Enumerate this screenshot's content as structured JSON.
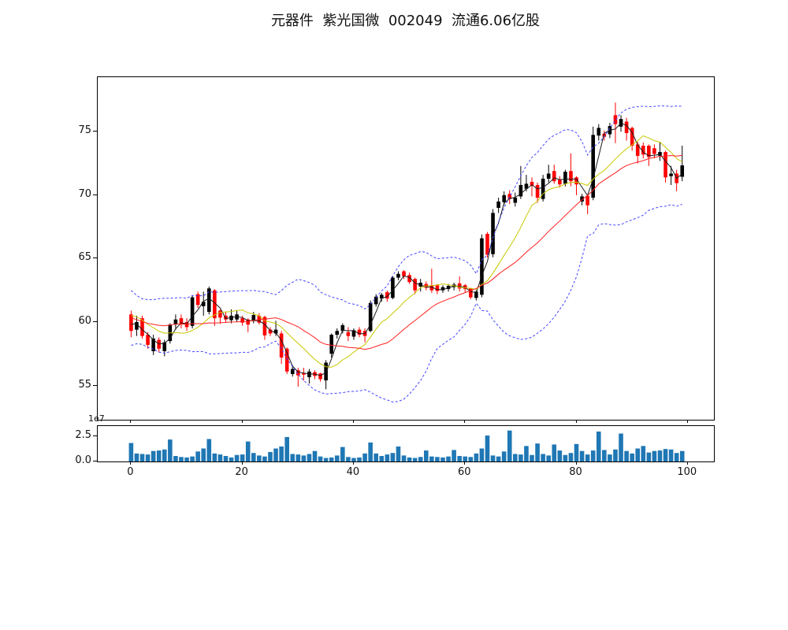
{
  "figure": {
    "title": "元器件  紫光国微  002049  流通6.06亿股",
    "background": "#ffffff"
  },
  "chart_data": [
    {
      "id": "price",
      "type": "candlestick",
      "title": "",
      "xlabel": "",
      "ylabel": "",
      "xlim": [
        -6,
        104.7
      ],
      "ylim": [
        52.3,
        79.3
      ],
      "y_ticks": [
        55,
        60,
        65,
        70,
        75
      ],
      "x_ticks": [
        0,
        20,
        40,
        60,
        80,
        100
      ],
      "grid": false,
      "color_up": "#000000",
      "color_down": "#ff0000",
      "ohlc": [
        [
          60.6,
          60.9,
          58.8,
          59.3
        ],
        [
          59.4,
          60.5,
          58.9,
          60.0
        ],
        [
          60.3,
          60.5,
          58.7,
          58.9
        ],
        [
          59.0,
          59.2,
          57.9,
          58.2
        ],
        [
          57.7,
          59.0,
          57.4,
          58.7
        ],
        [
          58.6,
          58.8,
          57.6,
          57.9
        ],
        [
          57.7,
          58.6,
          57.3,
          58.4
        ],
        [
          58.5,
          59.9,
          58.3,
          59.8
        ],
        [
          59.8,
          60.6,
          59.4,
          60.2
        ],
        [
          60.3,
          60.6,
          59.5,
          59.8
        ],
        [
          60.0,
          60.3,
          59.3,
          59.6
        ],
        [
          59.7,
          62.1,
          59.5,
          61.95
        ],
        [
          62.2,
          62.4,
          61.1,
          61.35
        ],
        [
          61.25,
          62.4,
          60.5,
          61.6
        ],
        [
          60.8,
          62.8,
          60.6,
          62.65
        ],
        [
          62.5,
          62.6,
          59.7,
          60.3
        ],
        [
          60.9,
          61.0,
          59.85,
          60.35
        ],
        [
          60.5,
          60.8,
          60.0,
          60.2
        ],
        [
          60.15,
          61.0,
          59.9,
          60.5
        ],
        [
          60.2,
          60.9,
          60.0,
          60.6
        ],
        [
          60.3,
          60.5,
          59.7,
          59.95
        ],
        [
          60.2,
          60.3,
          59.2,
          59.8
        ],
        [
          60.1,
          60.8,
          59.9,
          60.55
        ],
        [
          60.5,
          60.7,
          59.8,
          59.95
        ],
        [
          60.4,
          60.5,
          58.6,
          58.95
        ],
        [
          59.4,
          59.6,
          58.9,
          59.1
        ],
        [
          59.1,
          60.1,
          58.9,
          59.4
        ],
        [
          59.1,
          59.3,
          56.7,
          57.2
        ],
        [
          57.9,
          58.0,
          55.9,
          56.1
        ],
        [
          55.9,
          56.6,
          55.7,
          56.3
        ],
        [
          56.2,
          56.4,
          54.9,
          55.8
        ],
        [
          55.95,
          56.4,
          55.4,
          55.85
        ],
        [
          55.65,
          56.3,
          55.15,
          56.1
        ],
        [
          56.05,
          56.2,
          55.5,
          55.75
        ],
        [
          55.95,
          56.0,
          55.3,
          55.5
        ],
        [
          55.4,
          57.0,
          54.7,
          56.8
        ],
        [
          57.5,
          59.1,
          57.2,
          59.0
        ],
        [
          59.0,
          59.5,
          58.7,
          59.3
        ],
        [
          59.3,
          59.9,
          59.1,
          59.75
        ],
        [
          59.2,
          59.6,
          58.5,
          58.9
        ],
        [
          58.85,
          59.5,
          58.6,
          59.35
        ],
        [
          59.4,
          59.6,
          58.8,
          59.0
        ],
        [
          59.3,
          59.5,
          58.4,
          58.9
        ],
        [
          59.3,
          61.7,
          59.2,
          61.5
        ],
        [
          61.4,
          62.2,
          61.2,
          62.0
        ],
        [
          61.85,
          62.3,
          61.6,
          62.15
        ],
        [
          62.35,
          62.5,
          61.6,
          61.85
        ],
        [
          61.9,
          63.6,
          61.8,
          63.5
        ],
        [
          63.5,
          64.0,
          63.3,
          63.8
        ],
        [
          64.0,
          64.1,
          63.4,
          63.6
        ],
        [
          63.7,
          63.9,
          63.0,
          63.15
        ],
        [
          63.4,
          63.5,
          62.2,
          62.5
        ],
        [
          62.8,
          63.4,
          62.4,
          63.1
        ],
        [
          63.0,
          63.2,
          62.5,
          62.7
        ],
        [
          62.9,
          64.2,
          62.3,
          62.5
        ],
        [
          62.9,
          63.0,
          62.2,
          62.45
        ],
        [
          62.5,
          62.9,
          62.3,
          62.75
        ],
        [
          62.6,
          63.0,
          62.4,
          62.85
        ],
        [
          62.75,
          63.1,
          62.5,
          62.95
        ],
        [
          63.05,
          63.6,
          62.4,
          62.65
        ],
        [
          62.9,
          63.0,
          62.3,
          62.6
        ],
        [
          62.65,
          62.7,
          61.8,
          61.95
        ],
        [
          61.9,
          62.5,
          61.7,
          62.4
        ],
        [
          62.15,
          66.9,
          61.95,
          66.6
        ],
        [
          66.95,
          67.1,
          65.1,
          65.3
        ],
        [
          65.35,
          68.9,
          65.1,
          68.6
        ],
        [
          69.0,
          69.8,
          68.6,
          69.5
        ],
        [
          69.45,
          70.3,
          69.2,
          70.0
        ],
        [
          70.1,
          70.4,
          69.3,
          69.7
        ],
        [
          69.4,
          70.2,
          69.1,
          69.8
        ],
        [
          69.9,
          72.3,
          69.7,
          70.8
        ],
        [
          70.5,
          71.6,
          70.3,
          70.9
        ],
        [
          71.05,
          71.4,
          69.9,
          70.75
        ],
        [
          70.8,
          71.0,
          69.4,
          69.8
        ],
        [
          69.7,
          71.6,
          69.5,
          71.3
        ],
        [
          71.3,
          72.4,
          71.0,
          71.7
        ],
        [
          71.9,
          72.4,
          70.9,
          71.1
        ],
        [
          71.2,
          71.5,
          70.6,
          70.85
        ],
        [
          70.9,
          72.0,
          70.7,
          71.85
        ],
        [
          71.9,
          73.3,
          70.7,
          71.1
        ],
        [
          71.4,
          71.5,
          70.0,
          70.85
        ],
        [
          69.5,
          70.1,
          69.2,
          69.9
        ],
        [
          69.95,
          70.0,
          68.5,
          69.2
        ],
        [
          69.8,
          75.4,
          69.6,
          74.75
        ],
        [
          74.7,
          75.6,
          74.3,
          75.3
        ],
        [
          74.85,
          75.1,
          74.3,
          74.6
        ],
        [
          74.8,
          75.7,
          74.5,
          75.45
        ],
        [
          76.3,
          77.3,
          74.1,
          75.6
        ],
        [
          75.4,
          76.3,
          75.0,
          76.0
        ],
        [
          75.8,
          76.1,
          74.3,
          74.9
        ],
        [
          75.3,
          75.4,
          73.5,
          73.9
        ],
        [
          74.0,
          74.2,
          72.5,
          73.1
        ],
        [
          73.9,
          74.15,
          72.9,
          73.2
        ],
        [
          73.9,
          74.0,
          72.3,
          73.0
        ],
        [
          73.7,
          74.0,
          72.9,
          73.25
        ],
        [
          73.1,
          74.2,
          72.7,
          73.4
        ],
        [
          73.4,
          73.5,
          71.0,
          71.4
        ],
        [
          71.5,
          72.3,
          70.8,
          71.7
        ],
        [
          71.7,
          72.0,
          70.3,
          70.95
        ],
        [
          71.45,
          73.9,
          71.1,
          72.35
        ]
      ],
      "overlays": [
        {
          "name": "ma-short",
          "type": "sma",
          "window": 3,
          "color": "#1a1a1a",
          "style": "solid"
        },
        {
          "name": "ma-mid",
          "type": "sma",
          "window": 10,
          "color": "#c8c800",
          "style": "solid"
        },
        {
          "name": "ma-long",
          "type": "sma",
          "window": 20,
          "color": "#ff2020",
          "style": "solid"
        },
        {
          "name": "boll-upper",
          "type": "bollinger-upper",
          "window": 20,
          "k": 2,
          "color": "#4545ff",
          "style": "dashed"
        },
        {
          "name": "boll-lower",
          "type": "bollinger-lower",
          "window": 20,
          "k": 2,
          "color": "#4545ff",
          "style": "dashed"
        }
      ],
      "warmup_closes": [
        63.0,
        62.6,
        62.0,
        61.2,
        60.2,
        59.4,
        59.0,
        58.6,
        58.9,
        59.4,
        60.2,
        60.9,
        61.4,
        61.7,
        61.3,
        60.6,
        60.0,
        59.6,
        59.9,
        60.3
      ]
    },
    {
      "id": "volume",
      "type": "bar",
      "scale_label": "1e7",
      "ylim": [
        0,
        3.55
      ],
      "y_ticks": [
        0.0,
        2.5
      ],
      "x_tick_labels": [
        0,
        20,
        40,
        60,
        80,
        100
      ],
      "bar_color": "#1f77b4",
      "values": [
        1.85,
        0.8,
        0.75,
        0.7,
        1.05,
        1.1,
        1.2,
        2.2,
        0.55,
        0.45,
        0.4,
        0.5,
        1.0,
        1.3,
        2.25,
        0.8,
        0.7,
        0.55,
        0.4,
        0.65,
        0.7,
        2.0,
        0.85,
        0.6,
        0.5,
        0.95,
        1.3,
        1.5,
        2.45,
        0.75,
        0.7,
        0.6,
        0.75,
        1.05,
        0.5,
        0.35,
        0.4,
        0.6,
        1.45,
        0.45,
        0.35,
        0.4,
        0.8,
        1.9,
        0.8,
        0.55,
        0.7,
        0.85,
        1.5,
        0.6,
        0.4,
        0.35,
        0.45,
        1.1,
        0.5,
        0.45,
        0.4,
        0.5,
        1.15,
        0.55,
        0.5,
        0.45,
        0.8,
        1.3,
        2.6,
        0.6,
        0.5,
        1.0,
        3.1,
        0.75,
        0.7,
        1.55,
        0.65,
        1.8,
        0.75,
        0.6,
        1.7,
        1.1,
        0.65,
        0.85,
        1.75,
        1.05,
        0.7,
        1.1,
        3.0,
        1.15,
        0.7,
        1.2,
        2.8,
        1.05,
        0.8,
        1.3,
        1.55,
        0.9,
        1.05,
        1.1,
        1.25,
        1.2,
        0.85,
        1.05
      ]
    }
  ]
}
